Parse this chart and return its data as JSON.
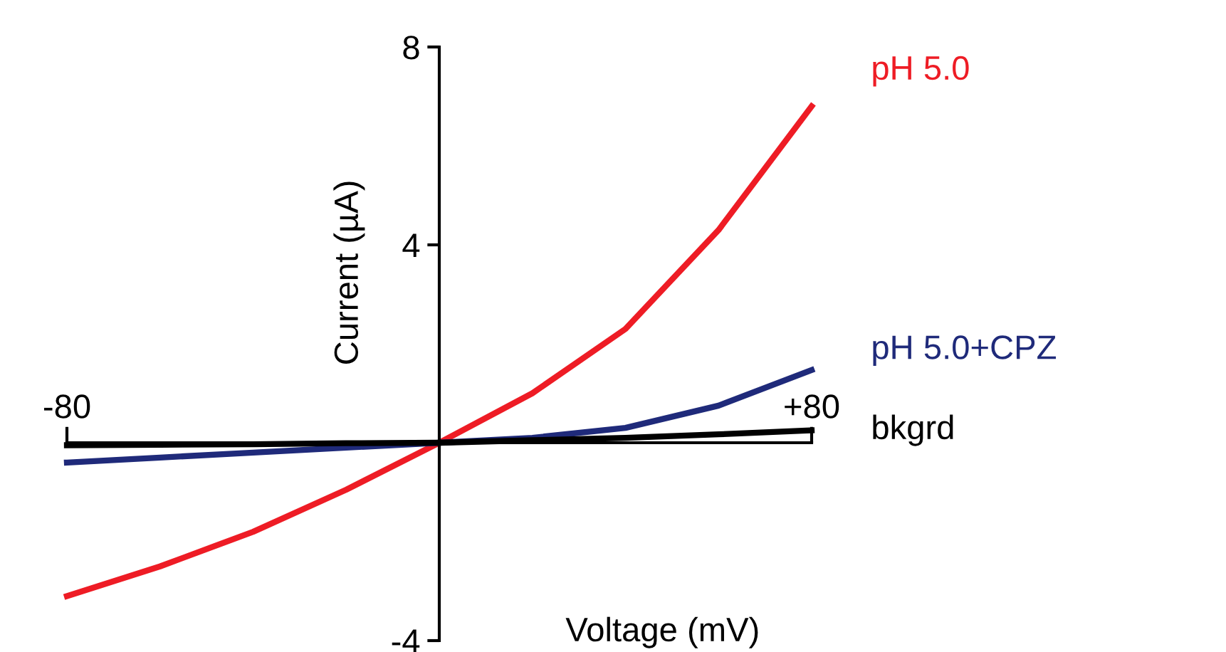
{
  "chart_data": {
    "type": "line",
    "xlabel": "Voltage (mV)",
    "ylabel": "Current (µA)",
    "x": [
      -80,
      -60,
      -40,
      -20,
      0,
      20,
      40,
      60,
      80
    ],
    "series": [
      {
        "name": "pH 5.0",
        "color": "#ee1c25",
        "values": [
          -3.1,
          -2.5,
          -1.8,
          -0.95,
          0,
          1.0,
          2.3,
          4.3,
          6.8
        ]
      },
      {
        "name": "pH 5.0+CPZ",
        "color": "#1f2a7a",
        "values": [
          -0.4,
          -0.3,
          -0.2,
          -0.1,
          0,
          0.1,
          0.3,
          0.75,
          1.47
        ]
      },
      {
        "name": "bkgrd",
        "color": "#000000",
        "values": [
          -0.05,
          -0.04,
          -0.03,
          -0.01,
          0,
          0.05,
          0.1,
          0.17,
          0.25
        ]
      }
    ],
    "xlim": [
      -80,
      80
    ],
    "ylim": [
      -4,
      8
    ],
    "xticks": [
      {
        "value": -80,
        "label": "-80"
      },
      {
        "value": 80,
        "label": "+80"
      }
    ],
    "yticks": [
      8,
      4,
      -4
    ],
    "grid": false,
    "legend": false,
    "marker": "none",
    "line_style": "solid"
  }
}
